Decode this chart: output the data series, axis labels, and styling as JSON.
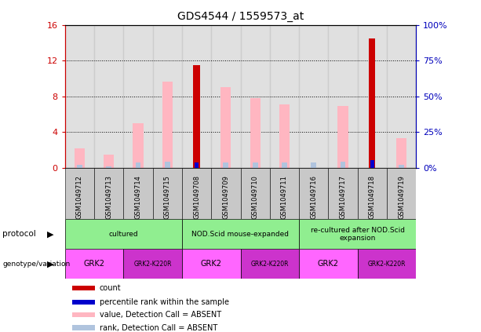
{
  "title": "GDS4544 / 1559573_at",
  "samples": [
    "GSM1049712",
    "GSM1049713",
    "GSM1049714",
    "GSM1049715",
    "GSM1049708",
    "GSM1049709",
    "GSM1049710",
    "GSM1049711",
    "GSM1049716",
    "GSM1049717",
    "GSM1049718",
    "GSM1049719"
  ],
  "count_values": [
    0,
    0,
    0,
    0,
    11.5,
    0,
    0,
    0,
    0,
    0,
    14.5,
    0
  ],
  "pct_rank_values": [
    0,
    0,
    0,
    0,
    3.8,
    0,
    0,
    0,
    0,
    0,
    5.5,
    0
  ],
  "value_absent": [
    2.2,
    1.5,
    5.0,
    9.6,
    0,
    9.0,
    7.8,
    7.1,
    0,
    6.9,
    0,
    3.3
  ],
  "rank_absent": [
    2.0,
    1.0,
    3.8,
    4.0,
    0,
    3.5,
    3.9,
    3.5,
    3.5,
    4.0,
    0,
    2.0
  ],
  "ylim_left": [
    0,
    16
  ],
  "ylim_right": [
    0,
    100
  ],
  "yticks_left": [
    0,
    4,
    8,
    12,
    16
  ],
  "yticks_right": [
    0,
    25,
    50,
    75,
    100
  ],
  "ytick_labels_left": [
    "0",
    "4",
    "8",
    "12",
    "16"
  ],
  "ytick_labels_right": [
    "0%",
    "25%",
    "50%",
    "75%",
    "100%"
  ],
  "protocol_groups": [
    {
      "label": "cultured",
      "start": 0,
      "end": 4,
      "color": "#90EE90"
    },
    {
      "label": "NOD.Scid mouse-expanded",
      "start": 4,
      "end": 8,
      "color": "#90EE90"
    },
    {
      "label": "re-cultured after NOD.Scid\nexpansion",
      "start": 8,
      "end": 12,
      "color": "#90EE90"
    }
  ],
  "genotype_groups": [
    {
      "label": "GRK2",
      "start": 0,
      "end": 2,
      "color": "#FF66FF"
    },
    {
      "label": "GRK2-K220R",
      "start": 2,
      "end": 4,
      "color": "#CC33CC"
    },
    {
      "label": "GRK2",
      "start": 4,
      "end": 6,
      "color": "#FF66FF"
    },
    {
      "label": "GRK2-K220R",
      "start": 6,
      "end": 8,
      "color": "#CC33CC"
    },
    {
      "label": "GRK2",
      "start": 8,
      "end": 10,
      "color": "#FF66FF"
    },
    {
      "label": "GRK2-K220R",
      "start": 10,
      "end": 12,
      "color": "#CC33CC"
    }
  ],
  "count_color": "#CC0000",
  "pct_rank_color": "#0000CC",
  "value_absent_color": "#FFB6C1",
  "rank_absent_color": "#B0C4DE",
  "axis_left_color": "#CC0000",
  "axis_right_color": "#0000BB",
  "legend_labels": [
    "count",
    "percentile rank within the sample",
    "value, Detection Call = ABSENT",
    "rank, Detection Call = ABSENT"
  ],
  "legend_colors": [
    "#CC0000",
    "#0000CC",
    "#FFB6C1",
    "#B0C4DE"
  ]
}
